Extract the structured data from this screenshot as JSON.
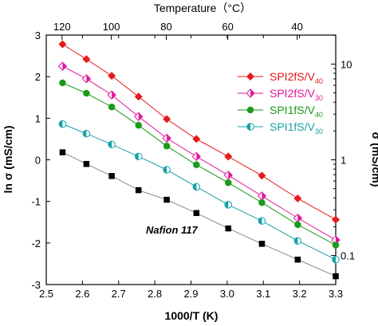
{
  "chart_data": {
    "type": "line",
    "top_axis_title": "Temperature（°C）",
    "xlabel": "1000/T (K)",
    "ylabel": "ln σ   (mS/cm)",
    "ylabel_right": "σ   (mS/cm)",
    "xlim": [
      2.5,
      3.3
    ],
    "ylim": [
      -3,
      3
    ],
    "x_ticks": [
      2.5,
      2.6,
      2.7,
      2.8,
      2.9,
      3.0,
      3.1,
      3.2,
      3.3
    ],
    "x_tick_labels": [
      "2.5",
      "2.6",
      "2.7",
      "2.8",
      "2.9",
      "3.0",
      "3.1",
      "3.2",
      "3.3"
    ],
    "y_ticks": [
      -3,
      -2,
      -1,
      0,
      1,
      2,
      3
    ],
    "y_tick_labels": [
      "-3",
      "-2",
      "-1",
      "0",
      "1",
      "2",
      "3"
    ],
    "top_ticks": [
      120,
      100,
      80,
      60,
      40
    ],
    "top_tick_labels": [
      "120",
      "100",
      "80",
      "60",
      "40"
    ],
    "right_ticks": [
      10,
      1,
      0.1
    ],
    "right_tick_labels": [
      "10",
      "1",
      "0.1"
    ],
    "annotation": "Nafion 117",
    "series": [
      {
        "name": "SPI2fS/V40",
        "label_main": "SPI2fS/V",
        "label_sub": "40",
        "color": "#e41a1c",
        "marker": "diamond",
        "in_legend": true,
        "x": [
          2.545,
          2.611,
          2.681,
          2.755,
          2.833,
          2.915,
          3.003,
          3.096,
          3.195,
          3.3
        ],
        "y": [
          2.78,
          2.42,
          2.02,
          1.52,
          0.98,
          0.5,
          0.08,
          -0.38,
          -0.93,
          -1.44
        ]
      },
      {
        "name": "SPI2fS/V30",
        "label_main": "SPI2fS/V",
        "label_sub": "30",
        "color": "#e0199b",
        "marker": "half-diamond",
        "in_legend": true,
        "x": [
          2.545,
          2.611,
          2.681,
          2.755,
          2.833,
          2.915,
          3.003,
          3.096,
          3.195,
          3.3
        ],
        "y": [
          2.25,
          1.95,
          1.56,
          1.04,
          0.52,
          0.08,
          -0.37,
          -0.87,
          -1.4,
          -1.93
        ]
      },
      {
        "name": "SPI1fS/V40",
        "label_main": "SPI1fS/V",
        "label_sub": "40",
        "color": "#1a9a1a",
        "marker": "circle",
        "in_legend": true,
        "x": [
          2.545,
          2.611,
          2.681,
          2.755,
          2.833,
          2.915,
          3.003,
          3.096,
          3.195,
          3.3
        ],
        "y": [
          1.85,
          1.6,
          1.27,
          0.83,
          0.33,
          -0.12,
          -0.55,
          -1.03,
          -1.56,
          -2.05
        ]
      },
      {
        "name": "SPI1fS/V30",
        "label_main": "SPI1fS/V",
        "label_sub": "30",
        "color": "#17a2a8",
        "marker": "half-circle",
        "in_legend": true,
        "x": [
          2.545,
          2.611,
          2.681,
          2.755,
          2.833,
          2.915,
          3.003,
          3.096,
          3.195,
          3.3
        ],
        "y": [
          0.86,
          0.63,
          0.37,
          0.08,
          -0.24,
          -0.65,
          -1.08,
          -1.47,
          -1.95,
          -2.4
        ]
      },
      {
        "name": "Nafion 117",
        "label_main": "",
        "label_sub": "",
        "color": "#000000",
        "line_color": "#888888",
        "marker": "square",
        "in_legend": false,
        "x": [
          2.545,
          2.611,
          2.681,
          2.755,
          2.833,
          2.915,
          3.003,
          3.096,
          3.195,
          3.3
        ],
        "y": [
          0.18,
          -0.1,
          -0.39,
          -0.73,
          -0.96,
          -1.28,
          -1.65,
          -2.02,
          -2.4,
          -2.8
        ]
      }
    ]
  }
}
